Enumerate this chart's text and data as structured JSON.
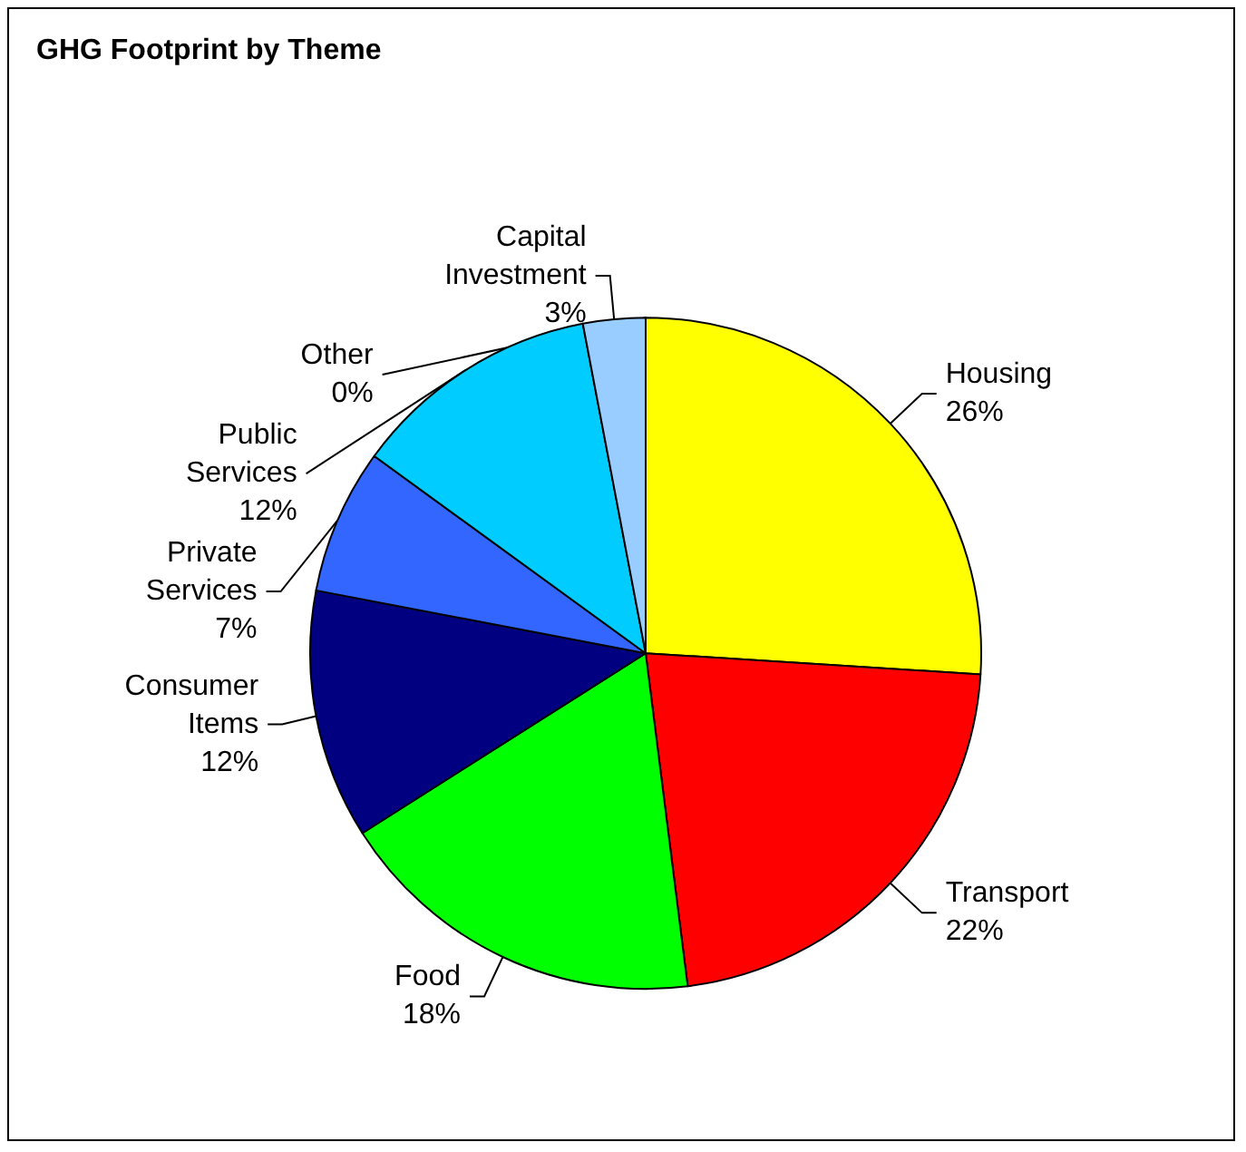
{
  "chart_data": {
    "type": "pie",
    "title": "GHG Footprint by Theme",
    "categories": [
      "Housing",
      "Transport",
      "Food",
      "Consumer Items",
      "Private Services",
      "Public Services",
      "Capital Investment",
      "Other"
    ],
    "values": [
      26,
      22,
      18,
      12,
      7,
      12,
      3,
      0
    ],
    "value_labels": [
      "26%",
      "22%",
      "18%",
      "12%",
      "7%",
      "12%",
      "3%",
      "0%"
    ],
    "colors": [
      "#ffff00",
      "#ff0000",
      "#00ff00",
      "#000080",
      "#3366ff",
      "#00ccff",
      "#99ccff",
      "#ccffcc"
    ]
  }
}
